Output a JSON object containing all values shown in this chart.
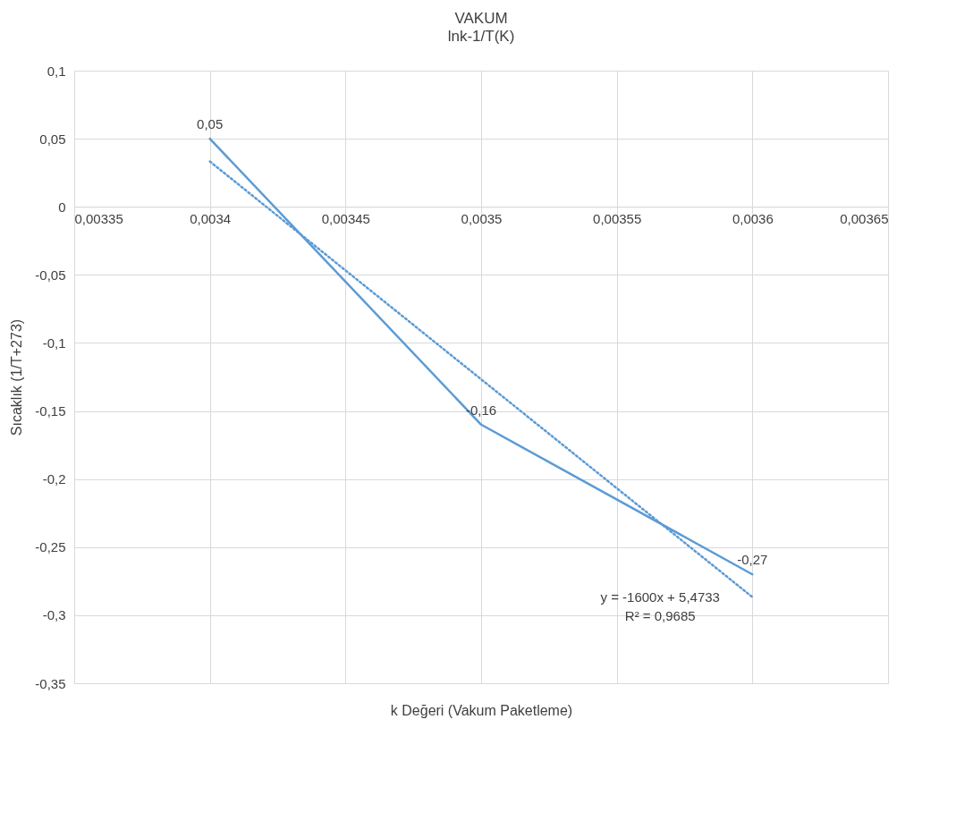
{
  "chart_data": {
    "type": "line",
    "title": "VAKUM",
    "subtitle": "lnk-1/T(K)",
    "xlabel": "k Değeri (Vakum Paketleme)",
    "ylabel": "Sıcaklık (1/T+273)",
    "x": [
      0.0034,
      0.0035,
      0.0036
    ],
    "series": [
      {
        "color": "#5b9bd5",
        "values": [
          0.05,
          -0.16,
          -0.27
        ],
        "value_labels": [
          "0,05",
          "-0,16",
          "-0,27"
        ]
      },
      {
        "type": "line",
        "line_style": "dotted",
        "color": "#5b9bd5",
        "x": [
          0.0034,
          0.0036
        ],
        "values": [
          0.0333,
          -0.2867
        ]
      }
    ],
    "xlim": [
      0.00335,
      0.00365
    ],
    "xticks": [
      {
        "value": 0.00335,
        "label": "0,00335"
      },
      {
        "value": 0.0034,
        "label": "0,0034"
      },
      {
        "value": 0.00345,
        "label": "0,00345"
      },
      {
        "value": 0.0035,
        "label": "0,0035"
      },
      {
        "value": 0.00355,
        "label": "0,00355"
      },
      {
        "value": 0.0036,
        "label": "0,0036"
      },
      {
        "value": 0.00365,
        "label": "0,00365"
      }
    ],
    "ylim": [
      -0.35,
      0.1
    ],
    "yticks": [
      {
        "value": -0.35,
        "label": "-0,35"
      },
      {
        "value": -0.3,
        "label": "-0,3"
      },
      {
        "value": -0.25,
        "label": "-0,25"
      },
      {
        "value": -0.2,
        "label": "-0,2"
      },
      {
        "value": -0.15,
        "label": "-0,15"
      },
      {
        "value": -0.1,
        "label": "-0,1"
      },
      {
        "value": -0.05,
        "label": "-0,05"
      },
      0,
      {
        "value": 0.05,
        "label": "0,05"
      },
      {
        "value": 0.1,
        "label": "0,1"
      }
    ],
    "grid": true,
    "annotations": [
      "y = -1600x + 5,4733",
      "R² = 0,9685"
    ]
  }
}
